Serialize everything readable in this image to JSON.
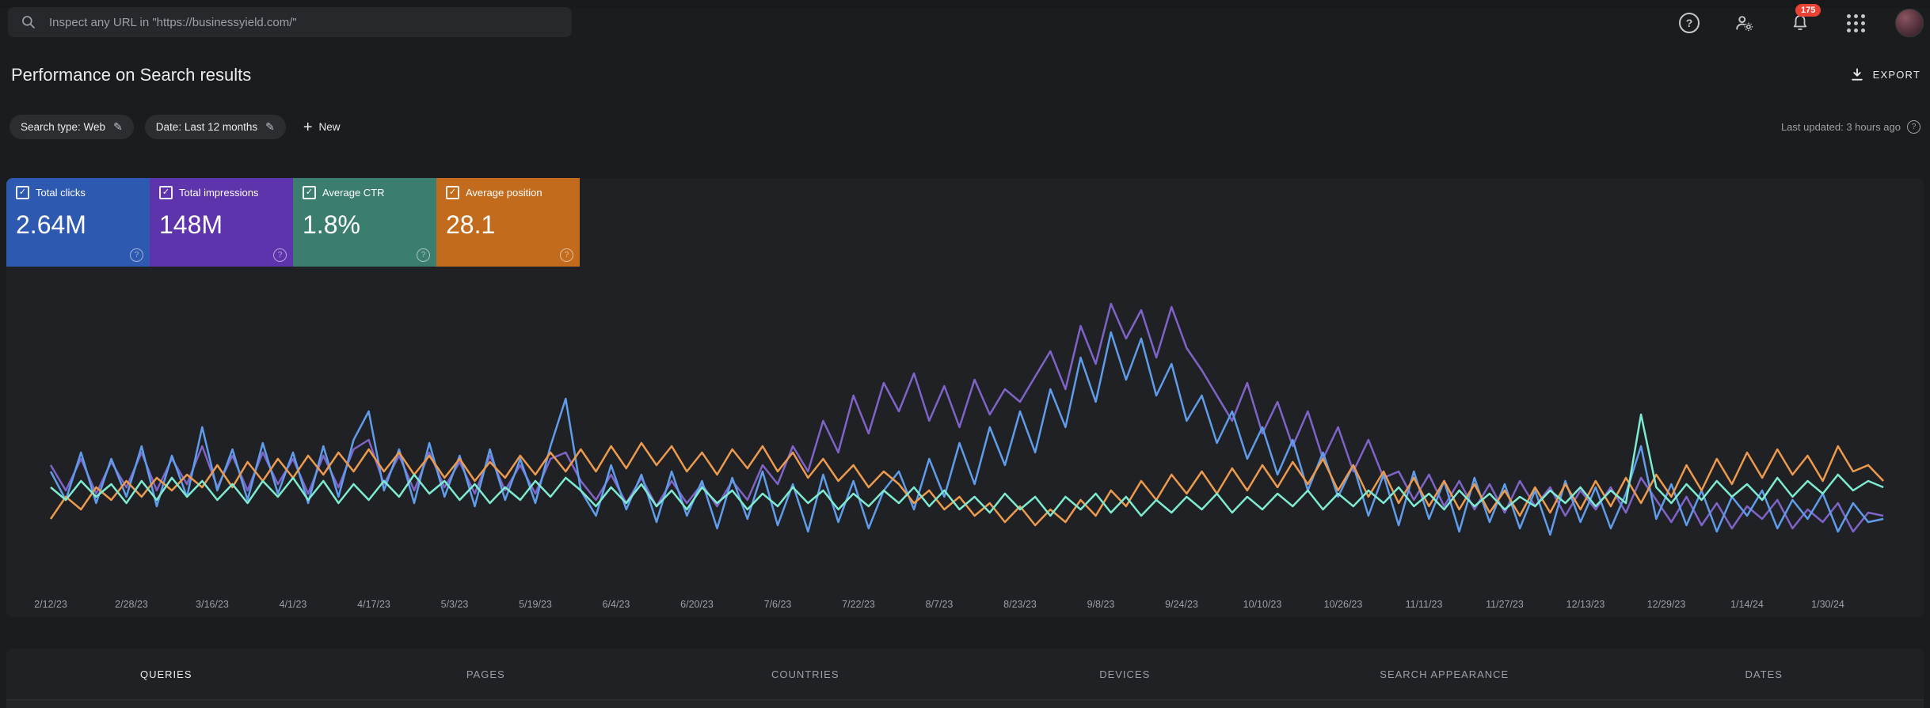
{
  "topbar": {
    "search_placeholder": "Inspect any URL in \"https://businessyield.com/\"",
    "notification_count": "175",
    "badge_color": "#e94235"
  },
  "header": {
    "title": "Performance on Search results",
    "export_label": "EXPORT"
  },
  "filters": {
    "search_type_chip": "Search type: Web",
    "date_chip": "Date: Last 12 months",
    "new_label": "New",
    "last_updated": "Last updated: 3 hours ago"
  },
  "cards": [
    {
      "label": "Total clicks",
      "value": "2.64M",
      "color": "#2d5ab0",
      "checked": "✓"
    },
    {
      "label": "Total impressions",
      "value": "148M",
      "color": "#5d34ab",
      "checked": "✓"
    },
    {
      "label": "Average CTR",
      "value": "1.8%",
      "color": "#3b7e70",
      "checked": "✓"
    },
    {
      "label": "Average position",
      "value": "28.1",
      "color": "#c36b1d",
      "checked": "✓"
    }
  ],
  "tabs": [
    {
      "label": "QUERIES",
      "active": true
    },
    {
      "label": "PAGES",
      "active": false
    },
    {
      "label": "COUNTRIES",
      "active": false
    },
    {
      "label": "DEVICES",
      "active": false
    },
    {
      "label": "SEARCH APPEARANCE",
      "active": false
    },
    {
      "label": "DATES",
      "active": false
    }
  ],
  "chart_data": {
    "type": "line",
    "title": "Search performance over last 12 months (daily)",
    "x_tick_labels": [
      "2/12/23",
      "2/28/23",
      "3/16/23",
      "4/1/23",
      "4/17/23",
      "5/3/23",
      "5/19/23",
      "6/4/23",
      "6/20/23",
      "7/6/23",
      "7/22/23",
      "8/7/23",
      "8/23/23",
      "9/8/23",
      "9/24/23",
      "10/10/23",
      "10/26/23",
      "11/11/23",
      "11/27/23",
      "12/13/23",
      "12/29/23",
      "1/14/24",
      "1/30/24"
    ],
    "x_tick_day_interval": 16,
    "sample_day_step": 3,
    "y_unit": "relative height 0-100 (no y-axis labels visible in chart)",
    "legend_position": "none (legend is the metric cards)",
    "grid": false,
    "series": [
      {
        "name": "Impressions",
        "color": "#7f64c8",
        "values": [
          38,
          30,
          40,
          29,
          39,
          31,
          42,
          30,
          40,
          32,
          44,
          31,
          41,
          30,
          42,
          32,
          40,
          29,
          41,
          31,
          43,
          46,
          32,
          41,
          30,
          42,
          31,
          39,
          29,
          41,
          30,
          38,
          29,
          40,
          42,
          33,
          27,
          35,
          26,
          34,
          25,
          33,
          26,
          32,
          25,
          33,
          27,
          38,
          32,
          44,
          36,
          52,
          42,
          60,
          48,
          64,
          55,
          67,
          52,
          63,
          50,
          65,
          54,
          62,
          58,
          66,
          74,
          62,
          82,
          70,
          89,
          78,
          87,
          72,
          88,
          75,
          68,
          60,
          52,
          64,
          48,
          58,
          44,
          55,
          40,
          50,
          36,
          46,
          34,
          36,
          27,
          35,
          25,
          33,
          24,
          32,
          23,
          33,
          25,
          31,
          22,
          30,
          24,
          31,
          23,
          34,
          27,
          20,
          28,
          19,
          26,
          18,
          25,
          21,
          27,
          18,
          24,
          20,
          26,
          17,
          23,
          22
        ]
      },
      {
        "name": "Clicks",
        "color": "#5f9cea",
        "values": [
          36,
          27,
          42,
          26,
          40,
          28,
          44,
          25,
          41,
          28,
          50,
          30,
          43,
          27,
          45,
          29,
          42,
          26,
          44,
          28,
          46,
          55,
          30,
          43,
          26,
          45,
          28,
          41,
          25,
          43,
          27,
          40,
          26,
          44,
          59,
          30,
          22,
          38,
          24,
          35,
          20,
          36,
          22,
          33,
          18,
          34,
          21,
          36,
          19,
          32,
          17,
          35,
          20,
          33,
          18,
          30,
          36,
          24,
          40,
          28,
          45,
          32,
          50,
          38,
          55,
          42,
          62,
          50,
          72,
          58,
          80,
          65,
          78,
          60,
          70,
          52,
          60,
          45,
          55,
          40,
          50,
          35,
          46,
          30,
          42,
          28,
          38,
          22,
          35,
          19,
          36,
          21,
          33,
          17,
          34,
          20,
          32,
          18,
          30,
          16,
          33,
          20,
          31,
          18,
          29,
          44,
          21,
          32,
          19,
          30,
          17,
          28,
          22,
          30,
          18,
          27,
          21,
          29,
          17,
          26,
          20,
          21
        ]
      },
      {
        "name": "Position",
        "color": "#ec9a4e",
        "values": [
          21,
          28,
          24,
          31,
          27,
          33,
          28,
          34,
          30,
          35,
          31,
          38,
          31,
          39,
          33,
          40,
          34,
          41,
          35,
          42,
          36,
          43,
          36,
          42,
          35,
          41,
          34,
          40,
          33,
          39,
          34,
          41,
          35,
          42,
          36,
          43,
          36,
          44,
          37,
          45,
          38,
          44,
          36,
          42,
          35,
          43,
          37,
          44,
          36,
          42,
          34,
          40,
          33,
          38,
          31,
          36,
          32,
          26,
          30,
          24,
          28,
          22,
          26,
          20,
          25,
          19,
          24,
          20,
          27,
          22,
          30,
          25,
          33,
          27,
          35,
          29,
          36,
          29,
          37,
          30,
          38,
          31,
          39,
          32,
          40,
          30,
          38,
          28,
          36,
          26,
          34,
          25,
          33,
          24,
          32,
          23,
          30,
          22,
          31,
          23,
          32,
          24,
          33,
          25,
          34,
          26,
          35,
          28,
          38,
          30,
          40,
          32,
          42,
          34,
          43,
          35,
          41,
          33,
          44,
          36,
          38,
          33
        ]
      },
      {
        "name": "CTR",
        "color": "#7eead1",
        "values": [
          31,
          27,
          33,
          28,
          32,
          26,
          33,
          27,
          34,
          28,
          33,
          27,
          32,
          26,
          33,
          28,
          34,
          27,
          33,
          26,
          32,
          27,
          33,
          28,
          35,
          29,
          33,
          27,
          32,
          26,
          31,
          27,
          33,
          28,
          34,
          30,
          25,
          31,
          26,
          32,
          25,
          30,
          24,
          31,
          26,
          30,
          24,
          29,
          25,
          31,
          26,
          30,
          24,
          29,
          25,
          30,
          26,
          31,
          25,
          30,
          24,
          28,
          23,
          29,
          24,
          28,
          22,
          28,
          24,
          29,
          23,
          28,
          22,
          27,
          23,
          28,
          24,
          29,
          23,
          28,
          24,
          29,
          25,
          30,
          24,
          29,
          25,
          30,
          26,
          31,
          25,
          29,
          24,
          30,
          25,
          29,
          24,
          28,
          25,
          30,
          26,
          31,
          25,
          30,
          26,
          54,
          31,
          26,
          32,
          27,
          33,
          28,
          32,
          27,
          34,
          28,
          33,
          29,
          35,
          30,
          33,
          31
        ]
      }
    ]
  }
}
